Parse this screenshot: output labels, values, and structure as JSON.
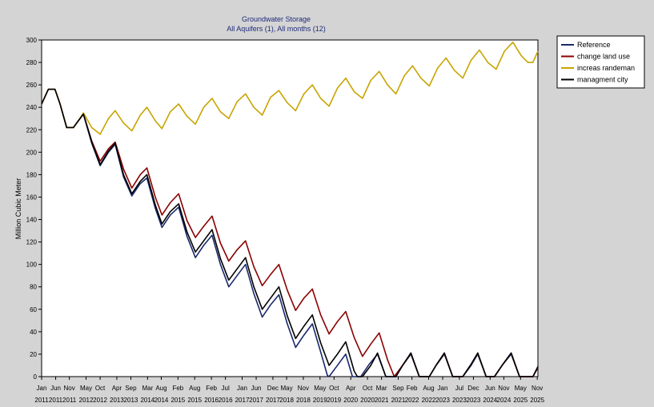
{
  "chart_data": {
    "type": "line",
    "title": "Groundwater Storage",
    "subtitle": "All Aquifers (1),  All months (12)",
    "ylabel": "Million Cubic Meter",
    "xlabel": "",
    "ylim": [
      0,
      300
    ],
    "yticks": [
      0,
      20,
      40,
      60,
      80,
      100,
      120,
      140,
      160,
      180,
      200,
      220,
      240,
      260,
      280,
      300
    ],
    "xlim": [
      2011.0,
      2025.85
    ],
    "xticks": [
      {
        "m": "Jan",
        "y": "2011",
        "t": 2011.0
      },
      {
        "m": "Jun",
        "y": "2011",
        "t": 2011.42
      },
      {
        "m": "Nov",
        "y": "2011",
        "t": 2011.83
      },
      {
        "m": "May",
        "y": "2012",
        "t": 2012.33
      },
      {
        "m": "Oct",
        "y": "2012",
        "t": 2012.75
      },
      {
        "m": "Apr",
        "y": "2013",
        "t": 2013.25
      },
      {
        "m": "Sep",
        "y": "2013",
        "t": 2013.67
      },
      {
        "m": "Mar",
        "y": "2014",
        "t": 2014.17
      },
      {
        "m": "Aug",
        "y": "2014",
        "t": 2014.58
      },
      {
        "m": "Feb",
        "y": "2015",
        "t": 2015.08
      },
      {
        "m": "Aug",
        "y": "2015",
        "t": 2015.58
      },
      {
        "m": "Feb",
        "y": "2016",
        "t": 2016.08
      },
      {
        "m": "Jul",
        "y": "2016",
        "t": 2016.5
      },
      {
        "m": "Jan",
        "y": "2017",
        "t": 2017.0
      },
      {
        "m": "Jun",
        "y": "2017",
        "t": 2017.42
      },
      {
        "m": "Dec",
        "y": "2017",
        "t": 2017.92
      },
      {
        "m": "May",
        "y": "2018",
        "t": 2018.33
      },
      {
        "m": "Nov",
        "y": "2018",
        "t": 2018.83
      },
      {
        "m": "May",
        "y": "2019",
        "t": 2019.33
      },
      {
        "m": "Oct",
        "y": "2019",
        "t": 2019.75
      },
      {
        "m": "Apr",
        "y": "2020",
        "t": 2020.25
      },
      {
        "m": "Oct",
        "y": "2020",
        "t": 2020.75
      },
      {
        "m": "Mar",
        "y": "2021",
        "t": 2021.17
      },
      {
        "m": "Sep",
        "y": "2021",
        "t": 2021.67
      },
      {
        "m": "Feb",
        "y": "2022",
        "t": 2022.08
      },
      {
        "m": "Aug",
        "y": "2022",
        "t": 2022.58
      },
      {
        "m": "Jan",
        "y": "2023",
        "t": 2023.0
      },
      {
        "m": "Jul",
        "y": "2023",
        "t": 2023.5
      },
      {
        "m": "Dec",
        "y": "2023",
        "t": 2023.92
      },
      {
        "m": "Jun",
        "y": "2024",
        "t": 2024.42
      },
      {
        "m": "Nov",
        "y": "2024",
        "t": 2024.83
      },
      {
        "m": "May",
        "y": "2025",
        "t": 2025.33
      },
      {
        "m": "Nov",
        "y": "2025",
        "t": 2025.83
      }
    ],
    "legend_position": "top-right, outside plot",
    "grid": false,
    "series": [
      {
        "name": "Reference",
        "color": "#1a2a6c",
        "points": [
          [
            2011.0,
            243
          ],
          [
            2011.2,
            256
          ],
          [
            2011.4,
            256
          ],
          [
            2011.55,
            243
          ],
          [
            2011.75,
            222
          ],
          [
            2011.95,
            222
          ],
          [
            2012.1,
            228
          ],
          [
            2012.25,
            234
          ],
          [
            2012.5,
            208
          ],
          [
            2012.75,
            188
          ],
          [
            2013.0,
            200
          ],
          [
            2013.2,
            207
          ],
          [
            2013.45,
            178
          ],
          [
            2013.7,
            161
          ],
          [
            2013.95,
            172
          ],
          [
            2014.15,
            177
          ],
          [
            2014.4,
            150
          ],
          [
            2014.6,
            133
          ],
          [
            2014.85,
            144
          ],
          [
            2015.1,
            151
          ],
          [
            2015.35,
            125
          ],
          [
            2015.6,
            106
          ],
          [
            2015.85,
            117
          ],
          [
            2016.1,
            126
          ],
          [
            2016.35,
            100
          ],
          [
            2016.6,
            80
          ],
          [
            2016.85,
            90
          ],
          [
            2017.1,
            100
          ],
          [
            2017.35,
            74
          ],
          [
            2017.6,
            53
          ],
          [
            2017.85,
            64
          ],
          [
            2018.1,
            73
          ],
          [
            2018.35,
            47
          ],
          [
            2018.6,
            26
          ],
          [
            2018.85,
            37
          ],
          [
            2019.1,
            47
          ],
          [
            2019.35,
            22
          ],
          [
            2019.55,
            1
          ],
          [
            2019.6,
            0
          ],
          [
            2019.8,
            8
          ],
          [
            2020.1,
            20
          ],
          [
            2020.3,
            0
          ],
          [
            2020.4,
            0
          ],
          [
            2020.55,
            0
          ],
          [
            2020.8,
            11
          ],
          [
            2021.05,
            20
          ],
          [
            2021.3,
            0
          ],
          [
            2021.6,
            0
          ],
          [
            2021.8,
            10
          ],
          [
            2022.05,
            20
          ],
          [
            2022.3,
            0
          ],
          [
            2022.6,
            0
          ],
          [
            2022.8,
            10
          ],
          [
            2023.05,
            20
          ],
          [
            2023.3,
            0
          ],
          [
            2023.6,
            0
          ],
          [
            2023.85,
            10
          ],
          [
            2024.05,
            20
          ],
          [
            2024.3,
            0
          ],
          [
            2024.55,
            0
          ],
          [
            2024.8,
            11
          ],
          [
            2025.05,
            20
          ],
          [
            2025.3,
            0
          ],
          [
            2025.7,
            0
          ],
          [
            2025.85,
            8
          ]
        ]
      },
      {
        "name": "change land use",
        "color": "#8b0000",
        "points": [
          [
            2011.0,
            243
          ],
          [
            2011.2,
            256
          ],
          [
            2011.4,
            256
          ],
          [
            2011.55,
            243
          ],
          [
            2011.75,
            222
          ],
          [
            2011.95,
            222
          ],
          [
            2012.1,
            228
          ],
          [
            2012.25,
            234
          ],
          [
            2012.5,
            210
          ],
          [
            2012.75,
            192
          ],
          [
            2013.0,
            203
          ],
          [
            2013.2,
            209
          ],
          [
            2013.45,
            185
          ],
          [
            2013.7,
            168
          ],
          [
            2013.95,
            180
          ],
          [
            2014.15,
            186
          ],
          [
            2014.4,
            160
          ],
          [
            2014.6,
            144
          ],
          [
            2014.85,
            155
          ],
          [
            2015.1,
            163
          ],
          [
            2015.35,
            139
          ],
          [
            2015.6,
            124
          ],
          [
            2015.85,
            134
          ],
          [
            2016.1,
            143
          ],
          [
            2016.35,
            119
          ],
          [
            2016.6,
            103
          ],
          [
            2016.85,
            113
          ],
          [
            2017.1,
            121
          ],
          [
            2017.35,
            98
          ],
          [
            2017.6,
            81
          ],
          [
            2017.85,
            91
          ],
          [
            2018.1,
            100
          ],
          [
            2018.35,
            77
          ],
          [
            2018.6,
            59
          ],
          [
            2018.85,
            70
          ],
          [
            2019.1,
            78
          ],
          [
            2019.35,
            55
          ],
          [
            2019.6,
            38
          ],
          [
            2019.85,
            49
          ],
          [
            2020.1,
            58
          ],
          [
            2020.35,
            35
          ],
          [
            2020.6,
            18
          ],
          [
            2020.85,
            29
          ],
          [
            2021.1,
            39
          ],
          [
            2021.35,
            15
          ],
          [
            2021.55,
            0
          ],
          [
            2021.8,
            10
          ],
          [
            2022.05,
            21
          ],
          [
            2022.3,
            0
          ],
          [
            2022.6,
            0
          ],
          [
            2022.8,
            10
          ],
          [
            2023.05,
            21
          ],
          [
            2023.3,
            0
          ],
          [
            2023.6,
            0
          ],
          [
            2023.85,
            11
          ],
          [
            2024.05,
            21
          ],
          [
            2024.3,
            0
          ],
          [
            2024.55,
            0
          ],
          [
            2024.8,
            11
          ],
          [
            2025.05,
            21
          ],
          [
            2025.3,
            0
          ],
          [
            2025.7,
            0
          ],
          [
            2025.85,
            8
          ]
        ]
      },
      {
        "name": "increas randeman",
        "color": "#c8a400",
        "points": [
          [
            2011.0,
            243
          ],
          [
            2011.2,
            256
          ],
          [
            2011.4,
            256
          ],
          [
            2011.55,
            243
          ],
          [
            2011.75,
            222
          ],
          [
            2011.95,
            222
          ],
          [
            2012.1,
            228
          ],
          [
            2012.25,
            235
          ],
          [
            2012.5,
            222
          ],
          [
            2012.75,
            216
          ],
          [
            2013.0,
            230
          ],
          [
            2013.2,
            237
          ],
          [
            2013.45,
            226
          ],
          [
            2013.7,
            219
          ],
          [
            2013.95,
            233
          ],
          [
            2014.15,
            240
          ],
          [
            2014.4,
            228
          ],
          [
            2014.6,
            221
          ],
          [
            2014.85,
            236
          ],
          [
            2015.1,
            243
          ],
          [
            2015.35,
            232
          ],
          [
            2015.6,
            225
          ],
          [
            2015.85,
            240
          ],
          [
            2016.1,
            248
          ],
          [
            2016.35,
            236
          ],
          [
            2016.6,
            230
          ],
          [
            2016.85,
            245
          ],
          [
            2017.1,
            252
          ],
          [
            2017.35,
            240
          ],
          [
            2017.6,
            233
          ],
          [
            2017.85,
            249
          ],
          [
            2018.1,
            255
          ],
          [
            2018.35,
            244
          ],
          [
            2018.6,
            237
          ],
          [
            2018.85,
            252
          ],
          [
            2019.1,
            260
          ],
          [
            2019.35,
            248
          ],
          [
            2019.6,
            241
          ],
          [
            2019.85,
            257
          ],
          [
            2020.1,
            266
          ],
          [
            2020.35,
            254
          ],
          [
            2020.6,
            248
          ],
          [
            2020.85,
            264
          ],
          [
            2021.1,
            272
          ],
          [
            2021.35,
            260
          ],
          [
            2021.6,
            252
          ],
          [
            2021.85,
            268
          ],
          [
            2022.1,
            277
          ],
          [
            2022.35,
            266
          ],
          [
            2022.6,
            259
          ],
          [
            2022.85,
            275
          ],
          [
            2023.1,
            284
          ],
          [
            2023.35,
            273
          ],
          [
            2023.6,
            266
          ],
          [
            2023.85,
            282
          ],
          [
            2024.1,
            291
          ],
          [
            2024.35,
            280
          ],
          [
            2024.6,
            274
          ],
          [
            2024.85,
            290
          ],
          [
            2025.1,
            298
          ],
          [
            2025.35,
            286
          ],
          [
            2025.55,
            280
          ],
          [
            2025.7,
            280
          ],
          [
            2025.85,
            290
          ]
        ]
      },
      {
        "name": "managment city",
        "color": "#000000",
        "points": [
          [
            2011.0,
            243
          ],
          [
            2011.2,
            256
          ],
          [
            2011.4,
            256
          ],
          [
            2011.55,
            243
          ],
          [
            2011.75,
            222
          ],
          [
            2011.95,
            222
          ],
          [
            2012.1,
            228
          ],
          [
            2012.25,
            234
          ],
          [
            2012.5,
            209
          ],
          [
            2012.75,
            189
          ],
          [
            2013.0,
            201
          ],
          [
            2013.2,
            208
          ],
          [
            2013.45,
            180
          ],
          [
            2013.7,
            163
          ],
          [
            2013.95,
            174
          ],
          [
            2014.15,
            180
          ],
          [
            2014.4,
            153
          ],
          [
            2014.6,
            136
          ],
          [
            2014.85,
            147
          ],
          [
            2015.1,
            154
          ],
          [
            2015.35,
            129
          ],
          [
            2015.6,
            111
          ],
          [
            2015.85,
            121
          ],
          [
            2016.1,
            131
          ],
          [
            2016.35,
            105
          ],
          [
            2016.6,
            86
          ],
          [
            2016.85,
            96
          ],
          [
            2017.1,
            106
          ],
          [
            2017.35,
            80
          ],
          [
            2017.6,
            60
          ],
          [
            2017.85,
            70
          ],
          [
            2018.1,
            80
          ],
          [
            2018.35,
            54
          ],
          [
            2018.6,
            34
          ],
          [
            2018.85,
            45
          ],
          [
            2019.1,
            55
          ],
          [
            2019.35,
            30
          ],
          [
            2019.6,
            10
          ],
          [
            2019.85,
            20
          ],
          [
            2020.1,
            31
          ],
          [
            2020.35,
            5
          ],
          [
            2020.45,
            0
          ],
          [
            2020.6,
            0
          ],
          [
            2020.85,
            10
          ],
          [
            2021.05,
            21
          ],
          [
            2021.3,
            0
          ],
          [
            2021.6,
            0
          ],
          [
            2021.8,
            10
          ],
          [
            2022.05,
            21
          ],
          [
            2022.3,
            0
          ],
          [
            2022.6,
            0
          ],
          [
            2022.8,
            10
          ],
          [
            2023.05,
            21
          ],
          [
            2023.3,
            0
          ],
          [
            2023.6,
            0
          ],
          [
            2023.85,
            11
          ],
          [
            2024.05,
            21
          ],
          [
            2024.3,
            0
          ],
          [
            2024.55,
            0
          ],
          [
            2024.8,
            11
          ],
          [
            2025.05,
            21
          ],
          [
            2025.3,
            0
          ],
          [
            2025.7,
            0
          ],
          [
            2025.85,
            9
          ]
        ]
      }
    ]
  }
}
